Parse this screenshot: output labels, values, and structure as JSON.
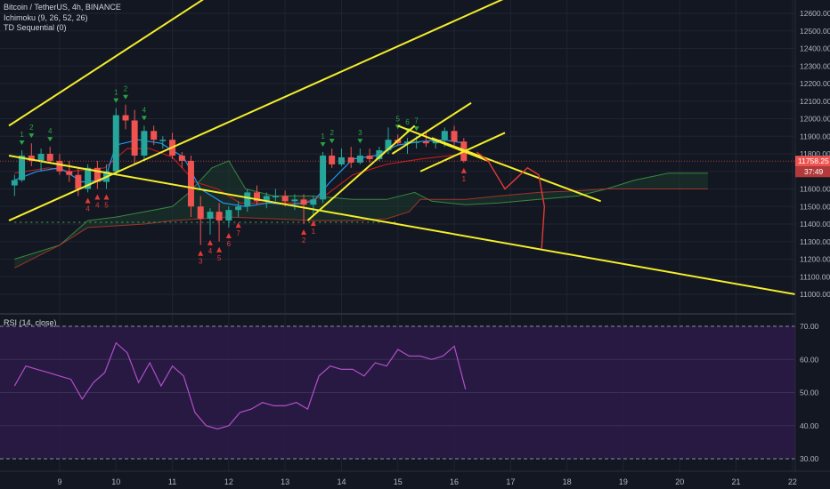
{
  "legend": {
    "symbol": "Bitcoin / TetherUS, 4h, BINANCE",
    "ichimoku": "Ichimoku (9, 26, 52, 26)",
    "td": "TD Sequential (0)"
  },
  "rsi_legend": "RSI (14, close)",
  "price_badges": {
    "last_price": "11758.25",
    "countdown": "37:49"
  },
  "colors": {
    "bg": "#131722",
    "up": "#26a69a",
    "down": "#ef5350",
    "trend": "#f4ee2a",
    "rsi_line": "#b04fc8",
    "rsi_fill": "#2a1a45",
    "tenkan": "#2196f3",
    "kijun": "#b71c1c",
    "cloud_green": "#1b3a2e",
    "chikou": "#4caf50"
  },
  "chart_data": [
    {
      "type": "candlestick",
      "title": "",
      "x_ticks": [
        "9",
        "10",
        "11",
        "12",
        "13",
        "14",
        "15",
        "16",
        "17",
        "18",
        "19",
        "20",
        "21",
        "22"
      ],
      "y_ticks": [
        "12600.00",
        "12500.00",
        "12400.00",
        "12300.00",
        "12200.00",
        "12100.00",
        "12000.00",
        "11900.00",
        "11800.00",
        "11700.00",
        "11600.00",
        "11500.00",
        "11400.00",
        "11300.00",
        "11200.00",
        "11100.00",
        "11000.00"
      ],
      "ylim": [
        10950,
        12680
      ],
      "xlim": [
        8.1,
        22.05
      ],
      "grid": true,
      "candles": [
        {
          "t": 8.2,
          "o": 11620,
          "h": 11680,
          "l": 11560,
          "c": 11650
        },
        {
          "t": 8.33,
          "o": 11650,
          "h": 11820,
          "l": 11640,
          "c": 11790
        },
        {
          "t": 8.5,
          "o": 11790,
          "h": 11860,
          "l": 11730,
          "c": 11760
        },
        {
          "t": 8.67,
          "o": 11760,
          "h": 11830,
          "l": 11700,
          "c": 11800
        },
        {
          "t": 8.83,
          "o": 11800,
          "h": 11840,
          "l": 11750,
          "c": 11760
        },
        {
          "t": 9.0,
          "o": 11760,
          "h": 11800,
          "l": 11680,
          "c": 11700
        },
        {
          "t": 9.17,
          "o": 11700,
          "h": 11760,
          "l": 11640,
          "c": 11680
        },
        {
          "t": 9.33,
          "o": 11680,
          "h": 11720,
          "l": 11560,
          "c": 11600
        },
        {
          "t": 9.5,
          "o": 11600,
          "h": 11740,
          "l": 11580,
          "c": 11720
        },
        {
          "t": 9.67,
          "o": 11720,
          "h": 11760,
          "l": 11600,
          "c": 11640
        },
        {
          "t": 9.83,
          "o": 11640,
          "h": 11740,
          "l": 11600,
          "c": 11700
        },
        {
          "t": 10.0,
          "o": 11700,
          "h": 12060,
          "l": 11680,
          "c": 12020
        },
        {
          "t": 10.17,
          "o": 12020,
          "h": 12080,
          "l": 11940,
          "c": 11990
        },
        {
          "t": 10.33,
          "o": 11990,
          "h": 12050,
          "l": 11740,
          "c": 11790
        },
        {
          "t": 10.5,
          "o": 11790,
          "h": 11960,
          "l": 11760,
          "c": 11930
        },
        {
          "t": 10.67,
          "o": 11930,
          "h": 11960,
          "l": 11850,
          "c": 11880
        },
        {
          "t": 10.83,
          "o": 11880,
          "h": 11900,
          "l": 11830,
          "c": 11880
        },
        {
          "t": 11.0,
          "o": 11880,
          "h": 11920,
          "l": 11770,
          "c": 11790
        },
        {
          "t": 11.17,
          "o": 11790,
          "h": 11810,
          "l": 11720,
          "c": 11760
        },
        {
          "t": 11.33,
          "o": 11760,
          "h": 11790,
          "l": 11440,
          "c": 11500
        },
        {
          "t": 11.5,
          "o": 11500,
          "h": 11560,
          "l": 11280,
          "c": 11430
        },
        {
          "t": 11.67,
          "o": 11430,
          "h": 11490,
          "l": 11340,
          "c": 11470
        },
        {
          "t": 11.83,
          "o": 11470,
          "h": 11520,
          "l": 11300,
          "c": 11420
        },
        {
          "t": 12.0,
          "o": 11420,
          "h": 11500,
          "l": 11380,
          "c": 11480
        },
        {
          "t": 12.17,
          "o": 11480,
          "h": 11530,
          "l": 11440,
          "c": 11500
        },
        {
          "t": 12.33,
          "o": 11500,
          "h": 11600,
          "l": 11470,
          "c": 11580
        },
        {
          "t": 12.5,
          "o": 11580,
          "h": 11620,
          "l": 11510,
          "c": 11530
        },
        {
          "t": 12.67,
          "o": 11530,
          "h": 11580,
          "l": 11490,
          "c": 11560
        },
        {
          "t": 12.83,
          "o": 11560,
          "h": 11600,
          "l": 11530,
          "c": 11560
        },
        {
          "t": 13.0,
          "o": 11560,
          "h": 11590,
          "l": 11500,
          "c": 11530
        },
        {
          "t": 13.17,
          "o": 11530,
          "h": 11570,
          "l": 11480,
          "c": 11540
        },
        {
          "t": 13.33,
          "o": 11540,
          "h": 11570,
          "l": 11400,
          "c": 11510
        },
        {
          "t": 13.5,
          "o": 11510,
          "h": 11560,
          "l": 11450,
          "c": 11540
        },
        {
          "t": 13.67,
          "o": 11540,
          "h": 11810,
          "l": 11520,
          "c": 11790
        },
        {
          "t": 13.83,
          "o": 11790,
          "h": 11830,
          "l": 11720,
          "c": 11740
        },
        {
          "t": 14.0,
          "o": 11740,
          "h": 11830,
          "l": 11730,
          "c": 11780
        },
        {
          "t": 14.17,
          "o": 11780,
          "h": 11840,
          "l": 11720,
          "c": 11750
        },
        {
          "t": 14.33,
          "o": 11750,
          "h": 11830,
          "l": 11740,
          "c": 11790
        },
        {
          "t": 14.5,
          "o": 11790,
          "h": 11830,
          "l": 11750,
          "c": 11770
        },
        {
          "t": 14.67,
          "o": 11770,
          "h": 11840,
          "l": 11760,
          "c": 11820
        },
        {
          "t": 14.83,
          "o": 11820,
          "h": 11950,
          "l": 11800,
          "c": 11880
        },
        {
          "t": 15.0,
          "o": 11880,
          "h": 11910,
          "l": 11850,
          "c": 11860
        },
        {
          "t": 15.17,
          "o": 11860,
          "h": 11890,
          "l": 11800,
          "c": 11870
        },
        {
          "t": 15.33,
          "o": 11870,
          "h": 11900,
          "l": 11830,
          "c": 11870
        },
        {
          "t": 15.5,
          "o": 11870,
          "h": 11930,
          "l": 11840,
          "c": 11860
        },
        {
          "t": 15.67,
          "o": 11860,
          "h": 11880,
          "l": 11830,
          "c": 11880
        },
        {
          "t": 15.83,
          "o": 11880,
          "h": 11950,
          "l": 11840,
          "c": 11930
        },
        {
          "t": 16.0,
          "o": 11930,
          "h": 11960,
          "l": 11850,
          "c": 11870
        },
        {
          "t": 16.17,
          "o": 11870,
          "h": 11890,
          "l": 11750,
          "c": 11760
        }
      ],
      "trendlines": [
        {
          "from": [
            8.1,
            11960
          ],
          "to": [
            11.55,
            12680
          ]
        },
        {
          "from": [
            8.1,
            11420
          ],
          "to": [
            17.0,
            12700
          ]
        },
        {
          "from": [
            8.1,
            11790
          ],
          "to": [
            22.05,
            11000
          ]
        },
        {
          "from": [
            13.4,
            11420
          ],
          "to": [
            15.3,
            11960
          ]
        },
        {
          "from": [
            15.0,
            11960
          ],
          "to": [
            16.6,
            11760
          ]
        },
        {
          "from": [
            14.9,
            11800
          ],
          "to": [
            16.3,
            12090
          ]
        },
        {
          "from": [
            15.4,
            11700
          ],
          "to": [
            16.9,
            11920
          ]
        },
        {
          "from": [
            15.6,
            11890
          ],
          "to": [
            18.6,
            11530
          ]
        }
      ],
      "ichimoku": {
        "tenkan": [
          [
            8.2,
            11650
          ],
          [
            8.6,
            11700
          ],
          [
            9.0,
            11720
          ],
          [
            9.4,
            11640
          ],
          [
            9.8,
            11650
          ],
          [
            10.0,
            11850
          ],
          [
            10.4,
            11880
          ],
          [
            10.8,
            11860
          ],
          [
            11.2,
            11780
          ],
          [
            11.5,
            11600
          ],
          [
            11.9,
            11520
          ],
          [
            12.3,
            11500
          ],
          [
            12.7,
            11520
          ],
          [
            13.1,
            11510
          ],
          [
            13.5,
            11530
          ],
          [
            13.8,
            11640
          ],
          [
            14.2,
            11770
          ],
          [
            14.6,
            11790
          ],
          [
            15.0,
            11850
          ],
          [
            15.4,
            11870
          ],
          [
            15.8,
            11880
          ],
          [
            16.2,
            11860
          ]
        ],
        "kijun": [
          [
            8.2,
            11690
          ],
          [
            8.8,
            11720
          ],
          [
            9.2,
            11700
          ],
          [
            9.8,
            11720
          ],
          [
            10.2,
            11830
          ],
          [
            10.6,
            11830
          ],
          [
            11.0,
            11780
          ],
          [
            11.4,
            11640
          ],
          [
            11.8,
            11600
          ],
          [
            12.2,
            11520
          ],
          [
            12.8,
            11520
          ],
          [
            13.3,
            11520
          ],
          [
            13.7,
            11560
          ],
          [
            14.2,
            11680
          ],
          [
            14.8,
            11740
          ],
          [
            15.4,
            11770
          ],
          [
            16.2,
            11800
          ]
        ],
        "span_a": [
          [
            8.2,
            11200
          ],
          [
            9.0,
            11280
          ],
          [
            9.5,
            11420
          ],
          [
            10.0,
            11440
          ],
          [
            10.5,
            11470
          ],
          [
            11.0,
            11500
          ],
          [
            11.3,
            11580
          ],
          [
            11.7,
            11720
          ],
          [
            12.0,
            11760
          ],
          [
            12.3,
            11600
          ],
          [
            12.8,
            11560
          ],
          [
            13.5,
            11560
          ],
          [
            14.2,
            11540
          ],
          [
            14.8,
            11540
          ],
          [
            15.3,
            11580
          ],
          [
            15.6,
            11530
          ],
          [
            16.2,
            11510
          ],
          [
            16.8,
            11520
          ],
          [
            17.5,
            11540
          ],
          [
            18.2,
            11560
          ],
          [
            18.7,
            11600
          ],
          [
            19.2,
            11650
          ],
          [
            19.8,
            11690
          ],
          [
            20.5,
            11690
          ]
        ],
        "span_b": [
          [
            8.2,
            11150
          ],
          [
            9.0,
            11280
          ],
          [
            9.5,
            11380
          ],
          [
            10.0,
            11390
          ],
          [
            10.5,
            11400
          ],
          [
            11.0,
            11420
          ],
          [
            11.5,
            11430
          ],
          [
            12.0,
            11440
          ],
          [
            12.8,
            11430
          ],
          [
            13.5,
            11420
          ],
          [
            14.2,
            11420
          ],
          [
            14.8,
            11430
          ],
          [
            15.2,
            11470
          ],
          [
            15.4,
            11540
          ],
          [
            16.2,
            11540
          ],
          [
            16.8,
            11560
          ],
          [
            17.5,
            11580
          ],
          [
            18.2,
            11590
          ],
          [
            18.7,
            11600
          ],
          [
            19.2,
            11600
          ],
          [
            19.8,
            11600
          ],
          [
            20.5,
            11600
          ]
        ],
        "chikou": [
          [
            8.2,
            11410
          ],
          [
            15.0,
            11410
          ]
        ]
      },
      "projection": [
        [
          16.4,
          11810
        ],
        [
          16.6,
          11760
        ],
        [
          16.75,
          11680
        ],
        [
          16.9,
          11600
        ],
        [
          17.1,
          11660
        ],
        [
          17.3,
          11720
        ],
        [
          17.5,
          11680
        ],
        [
          17.6,
          11500
        ],
        [
          17.55,
          11260
        ]
      ],
      "td_counts": [
        {
          "t": 8.33,
          "side": "up",
          "n": "1"
        },
        {
          "t": 8.5,
          "side": "up",
          "n": "2"
        },
        {
          "t": 8.83,
          "side": "up",
          "n": "4"
        },
        {
          "t": 9.5,
          "side": "down",
          "n": "4"
        },
        {
          "t": 9.67,
          "side": "down",
          "n": "4"
        },
        {
          "t": 9.83,
          "side": "down",
          "n": "5"
        },
        {
          "t": 10.0,
          "side": "up",
          "n": "1"
        },
        {
          "t": 10.17,
          "side": "up",
          "n": "2"
        },
        {
          "t": 10.5,
          "side": "up",
          "n": "4"
        },
        {
          "t": 11.5,
          "side": "down",
          "n": "3"
        },
        {
          "t": 11.67,
          "side": "down",
          "n": "4"
        },
        {
          "t": 11.83,
          "side": "down",
          "n": "5"
        },
        {
          "t": 12.0,
          "side": "down",
          "n": "6"
        },
        {
          "t": 12.17,
          "side": "down",
          "n": "7"
        },
        {
          "t": 13.33,
          "side": "down",
          "n": "2"
        },
        {
          "t": 13.5,
          "side": "down",
          "n": "1"
        },
        {
          "t": 13.67,
          "side": "up",
          "n": "1"
        },
        {
          "t": 13.83,
          "side": "up",
          "n": "2"
        },
        {
          "t": 14.33,
          "side": "up",
          "n": "3"
        },
        {
          "t": 15.0,
          "side": "up",
          "n": "5"
        },
        {
          "t": 15.17,
          "side": "up",
          "n": "6"
        },
        {
          "t": 15.33,
          "side": "up",
          "n": "7"
        },
        {
          "t": 16.17,
          "side": "down",
          "n": "1"
        }
      ]
    },
    {
      "type": "line",
      "title": "RSI (14, close)",
      "y_ticks": [
        "70.00",
        "60.00",
        "50.00",
        "40.00",
        "30.00"
      ],
      "ylim": [
        25,
        75
      ],
      "bands": [
        70,
        30
      ],
      "series": [
        {
          "x": [
            8.2,
            8.4,
            8.6,
            8.8,
            9.0,
            9.2,
            9.4,
            9.6,
            9.8,
            10.0,
            10.2,
            10.4,
            10.6,
            10.8,
            11.0,
            11.2,
            11.4,
            11.6,
            11.8,
            12.0,
            12.2,
            12.4,
            12.6,
            12.8,
            13.0,
            13.2,
            13.4,
            13.6,
            13.8,
            14.0,
            14.2,
            14.4,
            14.6,
            14.8,
            15.0,
            15.2,
            15.4,
            15.6,
            15.8,
            16.0,
            16.2
          ],
          "y": [
            52,
            58,
            57,
            56,
            55,
            54,
            48,
            53,
            56,
            65,
            62,
            53,
            59,
            52,
            58,
            55,
            44,
            40,
            39,
            40,
            44,
            45,
            47,
            46,
            46,
            47,
            45,
            55,
            58,
            57,
            57,
            55,
            59,
            58,
            63,
            61,
            61,
            60,
            61,
            64,
            51
          ]
        }
      ]
    }
  ]
}
